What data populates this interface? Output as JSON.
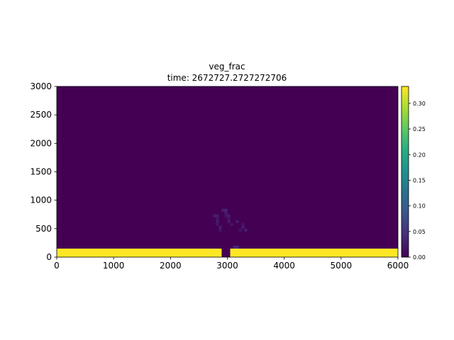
{
  "chart_data": {
    "type": "heatmap",
    "title": "veg_frac",
    "subtitle": "time: 2672727.2727272706",
    "xlabel": "",
    "ylabel": "",
    "xlim": [
      0,
      6000
    ],
    "ylim": [
      0,
      3000
    ],
    "x_ticks": [
      0,
      1000,
      2000,
      3000,
      4000,
      5000,
      6000
    ],
    "y_ticks": [
      0,
      500,
      1000,
      1500,
      2000,
      2500,
      3000
    ],
    "grid": false,
    "colormap": "viridis",
    "colorbar": {
      "range": [
        0,
        0.333
      ],
      "ticks": [
        "0.00",
        "0.05",
        "0.10",
        "0.15",
        "0.20",
        "0.25",
        "0.30"
      ],
      "tick_values": [
        0,
        0.05,
        0.1,
        0.15,
        0.2,
        0.25,
        0.3
      ]
    },
    "background_value": 0,
    "cells": [
      {
        "x0": 0,
        "x1": 2900,
        "y0": 0,
        "y1": 150,
        "value": 0.333
      },
      {
        "x0": 3050,
        "x1": 6000,
        "y0": 0,
        "y1": 150,
        "value": 0.333
      },
      {
        "x0": 2750,
        "x1": 2800,
        "y0": 700,
        "y1": 750,
        "value": 0.03
      },
      {
        "x0": 2800,
        "x1": 2850,
        "y0": 700,
        "y1": 750,
        "value": 0.03
      },
      {
        "x0": 2800,
        "x1": 2850,
        "y0": 650,
        "y1": 700,
        "value": 0.02
      },
      {
        "x0": 2800,
        "x1": 2850,
        "y0": 600,
        "y1": 650,
        "value": 0.03
      },
      {
        "x0": 2800,
        "x1": 2850,
        "y0": 550,
        "y1": 600,
        "value": 0.02
      },
      {
        "x0": 2850,
        "x1": 2900,
        "y0": 500,
        "y1": 550,
        "value": 0.03
      },
      {
        "x0": 2850,
        "x1": 2900,
        "y0": 450,
        "y1": 500,
        "value": 0.02
      },
      {
        "x0": 2900,
        "x1": 2950,
        "y0": 800,
        "y1": 850,
        "value": 0.03
      },
      {
        "x0": 2950,
        "x1": 3000,
        "y0": 800,
        "y1": 850,
        "value": 0.04
      },
      {
        "x0": 2950,
        "x1": 3000,
        "y0": 750,
        "y1": 800,
        "value": 0.03
      },
      {
        "x0": 2950,
        "x1": 3000,
        "y0": 700,
        "y1": 750,
        "value": 0.02
      },
      {
        "x0": 3000,
        "x1": 3050,
        "y0": 700,
        "y1": 750,
        "value": 0.03
      },
      {
        "x0": 3000,
        "x1": 3050,
        "y0": 650,
        "y1": 700,
        "value": 0.02
      },
      {
        "x0": 3000,
        "x1": 3050,
        "y0": 600,
        "y1": 650,
        "value": 0.03
      },
      {
        "x0": 3050,
        "x1": 3100,
        "y0": 550,
        "y1": 600,
        "value": 0.02
      },
      {
        "x0": 3150,
        "x1": 3200,
        "y0": 600,
        "y1": 650,
        "value": 0.03
      },
      {
        "x0": 3250,
        "x1": 3300,
        "y0": 550,
        "y1": 600,
        "value": 0.02
      },
      {
        "x0": 3250,
        "x1": 3300,
        "y0": 500,
        "y1": 550,
        "value": 0.03
      },
      {
        "x0": 3300,
        "x1": 3350,
        "y0": 450,
        "y1": 500,
        "value": 0.03
      },
      {
        "x0": 3200,
        "x1": 3250,
        "y0": 450,
        "y1": 500,
        "value": 0.02
      },
      {
        "x0": 3100,
        "x1": 3200,
        "y0": 150,
        "y1": 200,
        "value": 0.04
      }
    ]
  }
}
